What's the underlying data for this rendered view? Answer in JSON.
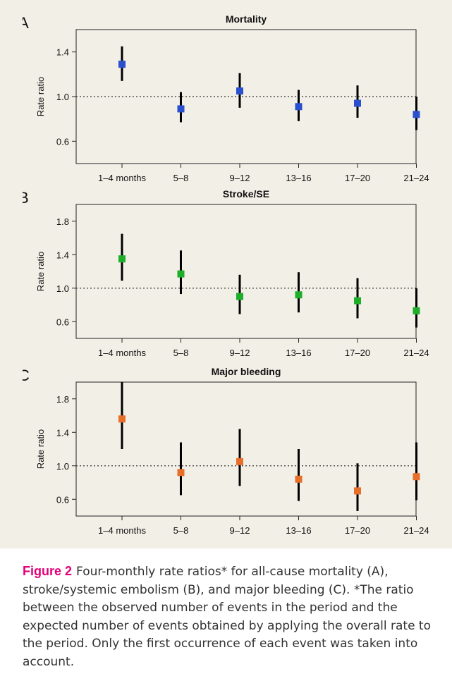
{
  "chart_data": [
    {
      "type": "scatter",
      "panel_label": "A",
      "title": "Mortality",
      "ylabel": "Rate ratio",
      "xlabel": "",
      "ylim": [
        0.4,
        1.6
      ],
      "yticks": [
        0.6,
        1.0,
        1.4
      ],
      "reference_line": 1.0,
      "categories": [
        "1–4 months",
        "5–8",
        "9–12",
        "13–16",
        "17–20",
        "21–24"
      ],
      "values": [
        1.29,
        0.89,
        1.05,
        0.91,
        0.94,
        0.84
      ],
      "lower": [
        1.14,
        0.77,
        0.9,
        0.78,
        0.81,
        0.7
      ],
      "upper": [
        1.45,
        1.04,
        1.21,
        1.06,
        1.1,
        1.0
      ],
      "marker_color": "#2a4fcf"
    },
    {
      "type": "scatter",
      "panel_label": "B",
      "title": "Stroke/SE",
      "ylabel": "Rate ratio",
      "xlabel": "",
      "ylim": [
        0.4,
        2.0
      ],
      "yticks": [
        0.6,
        1.0,
        1.4,
        1.8
      ],
      "reference_line": 1.0,
      "categories": [
        "1–4 months",
        "5–8",
        "9–12",
        "13–16",
        "17–20",
        "21–24"
      ],
      "values": [
        1.35,
        1.17,
        0.9,
        0.92,
        0.85,
        0.73
      ],
      "lower": [
        1.09,
        0.93,
        0.69,
        0.71,
        0.64,
        0.53
      ],
      "upper": [
        1.65,
        1.45,
        1.16,
        1.19,
        1.12,
        1.0
      ],
      "marker_color": "#1fae2a"
    },
    {
      "type": "scatter",
      "panel_label": "C",
      "title": "Major bleeding",
      "ylabel": "Rate ratio",
      "xlabel": "",
      "ylim": [
        0.4,
        2.0
      ],
      "yticks": [
        0.6,
        1.0,
        1.4,
        1.8
      ],
      "reference_line": 1.0,
      "categories": [
        "1–4 months",
        "5–8",
        "9–12",
        "13–16",
        "17–20",
        "21–24"
      ],
      "values": [
        1.56,
        0.92,
        1.05,
        0.84,
        0.7,
        0.87
      ],
      "lower": [
        1.2,
        0.65,
        0.76,
        0.58,
        0.46,
        0.59
      ],
      "upper": [
        2.0,
        1.28,
        1.44,
        1.2,
        1.03,
        1.28
      ],
      "marker_color": "#e86f2a"
    }
  ],
  "caption": {
    "label": "Figure 2",
    "text": "Four-monthly rate ratios* for all-cause mortality (A), stroke/systemic embolism (B), and major bleeding (C). *The ratio between the observed number of events in the period and the expected number of events obtained by applying the overall rate to the period. Only the first occurrence of each event was taken into account."
  }
}
